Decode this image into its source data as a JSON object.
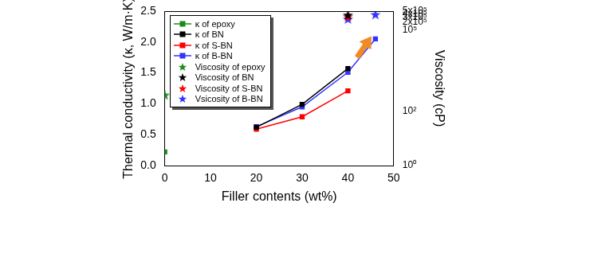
{
  "chart_data": {
    "type": "line",
    "x_label": "Filler contents (wt%)",
    "y_label": "Thermal conductivity (κ, W/m·K)",
    "y2_label": "Viscosity (cP)",
    "xlim": [
      0,
      50
    ],
    "xticks": [
      0,
      10,
      20,
      30,
      40,
      50
    ],
    "ylim": [
      0,
      2.5
    ],
    "yticks": [
      {
        "value": 0,
        "label": "0.0"
      },
      {
        "value": 0.5,
        "label": "0.5"
      },
      {
        "value": 1,
        "label": "1.0"
      },
      {
        "value": 1.5,
        "label": "1.5"
      },
      {
        "value": 2,
        "label": "2.0"
      },
      {
        "value": 2.5,
        "label": "2.5"
      }
    ],
    "y2lim": [
      1,
      500000
    ],
    "y2ticks": [
      {
        "value": 1,
        "label": "10⁰"
      },
      {
        "value": 100,
        "label": "10²"
      },
      {
        "value": 100000,
        "label": "10⁵"
      },
      {
        "value": 200000,
        "label": "2x10⁵"
      },
      {
        "value": 300000,
        "label": "3x10⁵"
      },
      {
        "value": 400000,
        "label": "4x10⁵"
      },
      {
        "value": 500000,
        "label": "5x10⁵"
      }
    ],
    "log": "y2",
    "grid": false,
    "legend": "upper left",
    "x": [
      0,
      20,
      30,
      40,
      46
    ],
    "series": [
      {
        "name": "κ of epoxy",
        "color": "#1a8c1a",
        "type": "line",
        "marker": "square",
        "values": [
          0.22,
          null,
          null,
          null,
          null
        ]
      },
      {
        "name": "κ of BN",
        "color": "#000000",
        "type": "line",
        "marker": "square",
        "values": [
          null,
          0.62,
          0.99,
          1.57,
          null
        ]
      },
      {
        "name": "κ of S-BN",
        "color": "#ff0000",
        "type": "line",
        "marker": "square",
        "values": [
          null,
          0.59,
          0.79,
          1.21,
          null
        ]
      },
      {
        "name": "κ of B-BN",
        "color": "#3333ff",
        "type": "line",
        "marker": "square",
        "values": [
          null,
          0.63,
          0.95,
          1.51,
          2.05
        ]
      },
      {
        "name": "Viscosity of epoxy",
        "color": "#1a8c1a",
        "type": "scatter",
        "marker": "star",
        "axis": "y2",
        "values": [
          400,
          null,
          null,
          null,
          null
        ]
      },
      {
        "name": "Viscosity of BN",
        "color": "#000000",
        "type": "scatter",
        "marker": "star",
        "axis": "y2",
        "values": [
          null,
          null,
          null,
          360000,
          null
        ]
      },
      {
        "name": "Viscosity of S-BN",
        "color": "#ff0000",
        "type": "scatter",
        "marker": "star",
        "axis": "y2",
        "values": [
          null,
          null,
          null,
          315000,
          null
        ]
      },
      {
        "name": "Vsicosity of B-BN",
        "color": "#3333ff",
        "type": "scatter",
        "marker": "star",
        "axis": "y2",
        "values": [
          null,
          null,
          null,
          255000,
          374000
        ]
      }
    ]
  }
}
